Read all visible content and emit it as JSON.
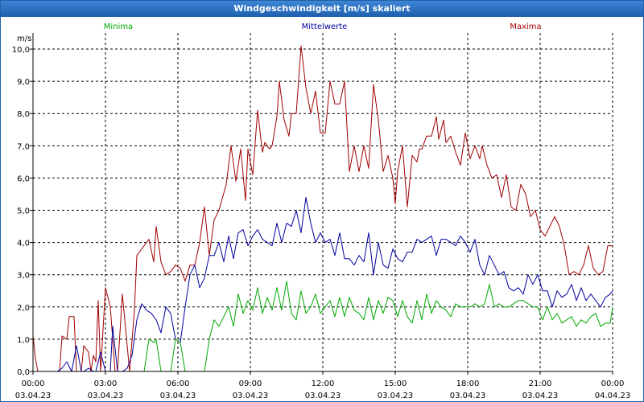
{
  "window": {
    "title": "Windgeschwindigkeit [m/s] skaliert"
  },
  "chart_data": {
    "type": "line",
    "title": "Windgeschwindigkeit [m/s] skaliert",
    "ylabel": "m/s",
    "xlabel": "",
    "ylim": [
      0,
      10.5
    ],
    "xlim": [
      0,
      24
    ],
    "grid": true,
    "legend": [
      "Minima",
      "Mittelwerte",
      "Maxima"
    ],
    "y_ticks": [
      "0,0",
      "1,0",
      "2,0",
      "3,0",
      "4,0",
      "5,0",
      "6,0",
      "7,0",
      "8,0",
      "9,0",
      "10,0"
    ],
    "x_ticks": [
      {
        "time": "00:00",
        "date": "03.04.23"
      },
      {
        "time": "03:00",
        "date": "03.04.23"
      },
      {
        "time": "06:00",
        "date": "03.04.23"
      },
      {
        "time": "09:00",
        "date": "03.04.23"
      },
      {
        "time": "12:00",
        "date": "03.04.23"
      },
      {
        "time": "15:00",
        "date": "03.04.23"
      },
      {
        "time": "18:00",
        "date": "03.04.23"
      },
      {
        "time": "21:00",
        "date": "03.04.23"
      },
      {
        "time": "00:00",
        "date": "04.04.23"
      }
    ],
    "series": [
      {
        "name": "Maxima",
        "color": "#a00000",
        "x": [
          0,
          0.1,
          0.2,
          0.7,
          1.1,
          1.2,
          1.4,
          1.5,
          1.7,
          1.8,
          2.0,
          2.1,
          2.3,
          2.4,
          2.5,
          2.6,
          2.7,
          2.8,
          3.0,
          3.2,
          3.4,
          3.5,
          3.7,
          4.0,
          4.2,
          4.3,
          4.5,
          4.8,
          5.0,
          5.1,
          5.3,
          5.5,
          5.7,
          5.9,
          6.1,
          6.3,
          6.5,
          6.7,
          6.9,
          7.1,
          7.3,
          7.5,
          7.7,
          8.0,
          8.2,
          8.4,
          8.6,
          8.8,
          8.9,
          9.1,
          9.3,
          9.5,
          9.6,
          9.8,
          9.9,
          10.1,
          10.2,
          10.4,
          10.6,
          10.7,
          10.9,
          11.1,
          11.3,
          11.5,
          11.7,
          11.9,
          12.1,
          12.3,
          12.5,
          12.7,
          12.9,
          13.1,
          13.3,
          13.5,
          13.7,
          13.9,
          14.1,
          14.3,
          14.5,
          14.7,
          14.9,
          15.0,
          15.1,
          15.3,
          15.5,
          15.7,
          15.9,
          16.0,
          16.1,
          16.3,
          16.5,
          16.7,
          16.8,
          17.0,
          17.1,
          17.3,
          17.5,
          17.7,
          17.9,
          18.1,
          18.3,
          18.5,
          18.6,
          18.8,
          19.0,
          19.2,
          19.4,
          19.6,
          19.8,
          20.0,
          20.2,
          20.4,
          20.6,
          20.8,
          21.0,
          21.2,
          21.4,
          21.6,
          21.8,
          22.0,
          22.2,
          22.4,
          22.6,
          22.8,
          23.0,
          23.2,
          23.4,
          23.6,
          23.8,
          24.0
        ],
        "values": [
          1.1,
          0.4,
          0.0,
          0.0,
          0.0,
          1.1,
          1.0,
          1.7,
          1.7,
          0.0,
          0.0,
          0.8,
          0.6,
          0.0,
          0.5,
          0.3,
          2.2,
          0.0,
          2.6,
          2.0,
          0.0,
          0.0,
          2.4,
          0.0,
          1.9,
          3.6,
          3.8,
          4.1,
          3.4,
          4.5,
          3.4,
          3.0,
          3.1,
          3.3,
          3.2,
          2.8,
          3.3,
          3.3,
          4.0,
          5.1,
          3.6,
          4.7,
          5.0,
          5.8,
          7.0,
          5.9,
          6.9,
          5.3,
          6.9,
          6.1,
          8.1,
          6.8,
          7.1,
          6.9,
          7.0,
          7.9,
          9.0,
          7.8,
          7.3,
          8.0,
          8.0,
          10.1,
          8.8,
          8.0,
          8.7,
          7.4,
          7.4,
          9.0,
          8.3,
          8.3,
          9.0,
          6.2,
          7.0,
          6.2,
          7.0,
          6.3,
          8.9,
          7.8,
          6.2,
          6.7,
          6.0,
          5.2,
          6.2,
          7.0,
          5.1,
          6.7,
          6.5,
          6.9,
          6.9,
          7.3,
          7.3,
          7.9,
          7.2,
          7.8,
          7.1,
          7.3,
          6.8,
          6.4,
          7.4,
          6.6,
          7.0,
          6.6,
          7.0,
          6.4,
          6.0,
          6.1,
          5.4,
          6.1,
          5.1,
          5.0,
          5.8,
          5.5,
          4.8,
          5.0,
          4.4,
          4.2,
          4.5,
          4.8,
          4.5,
          3.9,
          3.0,
          3.1,
          3.0,
          3.3,
          3.9,
          3.2,
          3.0,
          3.1,
          3.9,
          3.9
        ]
      },
      {
        "name": "Mittelwerte",
        "color": "#0000a0",
        "x": [
          0,
          0.2,
          0.6,
          1.0,
          1.2,
          1.4,
          1.6,
          1.8,
          2.0,
          2.1,
          2.3,
          2.5,
          2.6,
          2.8,
          3.0,
          3.2,
          3.3,
          3.5,
          3.7,
          3.9,
          4.1,
          4.3,
          4.5,
          4.7,
          4.9,
          5.1,
          5.3,
          5.5,
          5.7,
          5.9,
          6.1,
          6.3,
          6.5,
          6.7,
          6.9,
          7.1,
          7.3,
          7.5,
          7.7,
          7.9,
          8.1,
          8.3,
          8.5,
          8.7,
          8.9,
          9.1,
          9.3,
          9.5,
          9.7,
          9.9,
          10.1,
          10.3,
          10.5,
          10.7,
          10.9,
          11.1,
          11.3,
          11.5,
          11.7,
          11.9,
          12.1,
          12.3,
          12.5,
          12.7,
          12.9,
          13.1,
          13.3,
          13.5,
          13.7,
          13.9,
          14.1,
          14.3,
          14.5,
          14.7,
          14.9,
          15.1,
          15.3,
          15.5,
          15.7,
          15.9,
          16.1,
          16.3,
          16.5,
          16.7,
          16.9,
          17.1,
          17.3,
          17.5,
          17.7,
          17.9,
          18.1,
          18.3,
          18.5,
          18.7,
          18.9,
          19.1,
          19.3,
          19.5,
          19.7,
          19.9,
          20.1,
          20.3,
          20.5,
          20.7,
          20.9,
          21.1,
          21.3,
          21.5,
          21.7,
          21.9,
          22.1,
          22.3,
          22.5,
          22.7,
          22.9,
          23.1,
          23.3,
          23.5,
          23.7,
          23.9,
          24.0
        ],
        "values": [
          0.0,
          0.0,
          0.0,
          0.0,
          0.1,
          0.3,
          0.0,
          0.8,
          0.0,
          0.0,
          0.1,
          0.0,
          0.0,
          0.6,
          0.0,
          0.0,
          1.4,
          0.0,
          0.0,
          0.1,
          0.5,
          1.6,
          2.1,
          1.9,
          1.8,
          1.6,
          1.2,
          2.0,
          1.8,
          1.0,
          0.9,
          2.0,
          3.0,
          3.3,
          2.6,
          2.9,
          3.6,
          3.6,
          4.0,
          3.4,
          4.2,
          3.5,
          4.3,
          4.4,
          3.9,
          4.2,
          4.4,
          4.1,
          4.0,
          3.9,
          4.6,
          4.0,
          4.6,
          4.5,
          5.0,
          4.3,
          5.4,
          4.6,
          4.0,
          4.3,
          4.0,
          4.1,
          3.6,
          4.3,
          3.5,
          3.5,
          3.3,
          3.6,
          3.4,
          4.3,
          3.0,
          4.0,
          3.3,
          3.2,
          3.8,
          3.5,
          3.4,
          3.7,
          3.7,
          4.1,
          4.0,
          4.1,
          4.2,
          3.6,
          4.1,
          4.1,
          4.0,
          3.9,
          4.2,
          4.0,
          3.7,
          4.1,
          3.3,
          3.0,
          3.6,
          3.3,
          3.0,
          3.1,
          2.6,
          2.5,
          2.6,
          2.4,
          3.0,
          2.7,
          3.0,
          2.5,
          2.5,
          2.0,
          2.5,
          2.3,
          2.4,
          2.7,
          2.2,
          2.6,
          2.2,
          2.4,
          2.2,
          2.0,
          2.3,
          2.4,
          2.5
        ]
      },
      {
        "name": "Minima",
        "color": "#00aa00",
        "x": [
          0,
          4.6,
          4.8,
          5.0,
          5.1,
          5.3,
          5.5,
          5.7,
          5.9,
          6.1,
          6.3,
          6.5,
          6.7,
          6.9,
          7.1,
          7.3,
          7.5,
          7.7,
          7.9,
          8.1,
          8.3,
          8.5,
          8.7,
          8.9,
          9.1,
          9.3,
          9.5,
          9.7,
          9.9,
          10.1,
          10.3,
          10.5,
          10.7,
          10.9,
          11.1,
          11.3,
          11.5,
          11.7,
          11.9,
          12.1,
          12.3,
          12.5,
          12.7,
          12.9,
          13.1,
          13.3,
          13.5,
          13.7,
          13.9,
          14.1,
          14.3,
          14.5,
          14.7,
          14.9,
          15.1,
          15.3,
          15.5,
          15.7,
          15.9,
          16.1,
          16.3,
          16.5,
          16.7,
          16.9,
          17.1,
          17.3,
          17.5,
          17.7,
          17.9,
          18.1,
          18.3,
          18.5,
          18.7,
          18.9,
          19.1,
          19.3,
          19.5,
          19.7,
          19.9,
          20.1,
          20.3,
          20.5,
          20.7,
          20.9,
          21.1,
          21.3,
          21.5,
          21.7,
          21.9,
          22.1,
          22.3,
          22.5,
          22.7,
          22.9,
          23.1,
          23.3,
          23.5,
          23.7,
          23.9,
          24.0
        ],
        "values": [
          0.0,
          0.0,
          1.0,
          0.9,
          1.0,
          0.0,
          0.0,
          0.0,
          1.0,
          0.9,
          0.0,
          0.0,
          0.0,
          0.0,
          0.0,
          1.0,
          1.6,
          1.4,
          1.7,
          2.0,
          1.4,
          2.4,
          1.8,
          2.2,
          1.9,
          2.6,
          1.8,
          2.3,
          1.9,
          2.6,
          1.9,
          2.8,
          1.8,
          1.6,
          2.5,
          1.8,
          2.0,
          2.4,
          1.8,
          2.0,
          2.2,
          1.7,
          2.3,
          1.7,
          2.3,
          1.9,
          1.8,
          1.6,
          2.3,
          1.6,
          2.2,
          1.8,
          2.3,
          2.2,
          1.7,
          2.2,
          1.7,
          1.5,
          2.2,
          1.6,
          2.4,
          1.8,
          2.2,
          2.0,
          1.9,
          1.7,
          2.1,
          2.0,
          2.0,
          2.0,
          2.1,
          2.0,
          2.1,
          2.7,
          2.0,
          2.1,
          2.0,
          2.0,
          2.1,
          2.2,
          2.2,
          2.1,
          2.0,
          2.0,
          1.6,
          2.0,
          1.6,
          1.8,
          1.5,
          1.6,
          1.7,
          1.4,
          1.6,
          1.5,
          1.7,
          1.8,
          1.4,
          1.5,
          1.5,
          2.0
        ]
      }
    ]
  }
}
